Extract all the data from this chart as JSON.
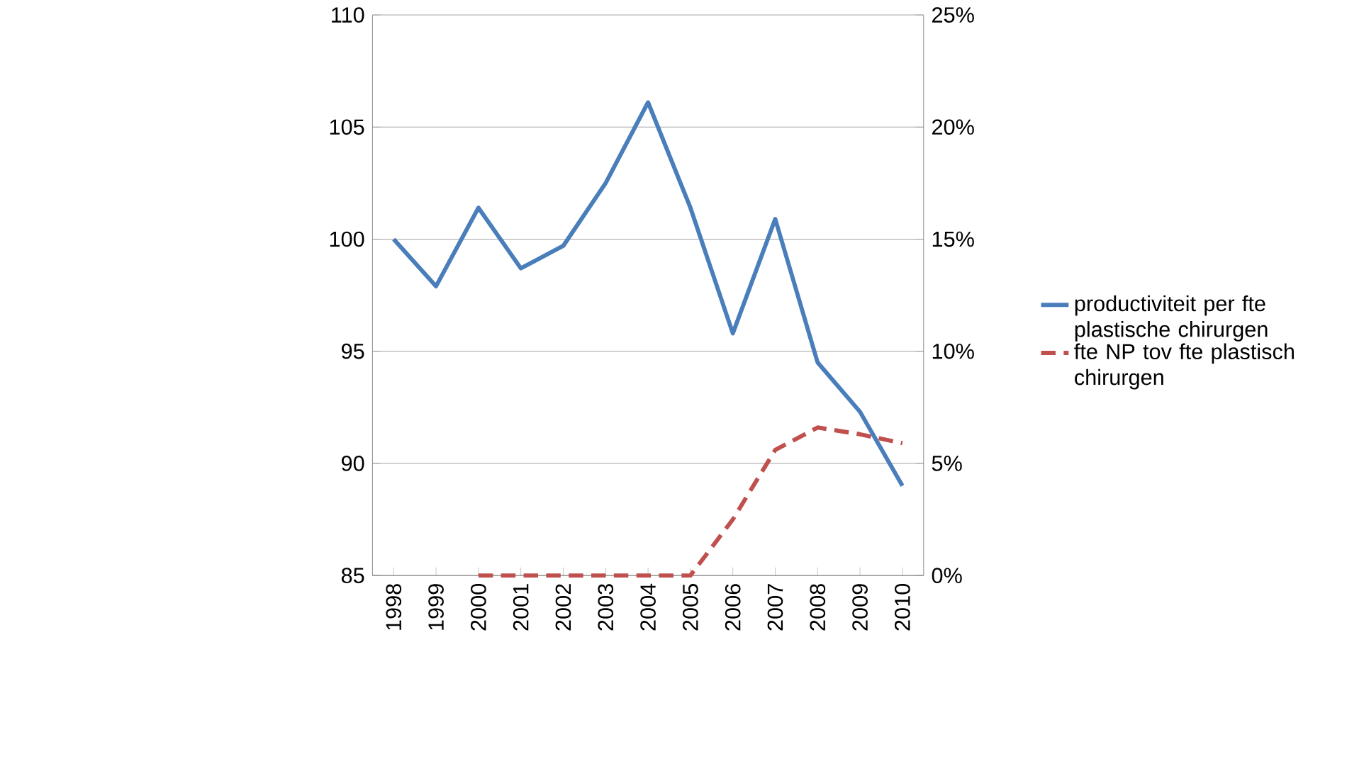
{
  "chart_data": {
    "type": "line",
    "categories": [
      "1998",
      "1999",
      "2000",
      "2001",
      "2002",
      "2003",
      "2004",
      "2005",
      "2006",
      "2007",
      "2008",
      "2009",
      "2010"
    ],
    "series": [
      {
        "name": "productiviteit per fte plastische chirurgen",
        "color": "#4a7ebb",
        "line_style": "solid",
        "values": [
          100.0,
          97.9,
          101.4,
          98.7,
          99.7,
          102.5,
          106.1,
          101.4,
          95.8,
          100.9,
          94.5,
          92.3,
          89.0
        ]
      },
      {
        "name": "fte NP tov fte plastisch chirurgen",
        "color": "#c0504d",
        "line_style": "dashed",
        "axis": "y2",
        "values": [
          null,
          null,
          0,
          0,
          0,
          0,
          0,
          0,
          2.5,
          5.6,
          6.6,
          6.3,
          5.9
        ]
      }
    ],
    "ylim": [
      85,
      110
    ],
    "yticks": [
      85,
      90,
      95,
      100,
      105,
      110
    ],
    "y2lim": [
      0,
      25
    ],
    "y2ticks": [
      {
        "value": 0,
        "label": "0%"
      },
      {
        "value": 5,
        "label": "5%"
      },
      {
        "value": 10,
        "label": "10%"
      },
      {
        "value": 15,
        "label": "15%"
      },
      {
        "value": 20,
        "label": "20%"
      },
      {
        "value": 25,
        "label": "25%"
      }
    ],
    "grid": "y",
    "legend": "right",
    "marker": "none"
  }
}
